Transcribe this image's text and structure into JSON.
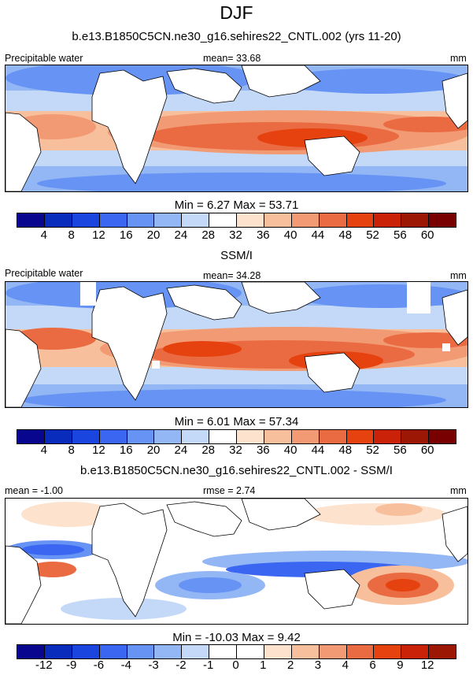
{
  "figure": {
    "title": "DJF",
    "units": "mm",
    "variable": "Precipitable water"
  },
  "colors": {
    "precip_scale": [
      "#08068f",
      "#0a2cbc",
      "#1a46df",
      "#3a66f2",
      "#6693f4",
      "#93b6f4",
      "#c4d9f7",
      "#ffffff",
      "#fde2ce",
      "#f8bf9c",
      "#f29a73",
      "#ea6b41",
      "#e5420f",
      "#c92209",
      "#9c1704",
      "#780000"
    ],
    "diff_scale": [
      "#08068f",
      "#0a2cbc",
      "#1a46df",
      "#3a66f2",
      "#6693f4",
      "#93b6f4",
      "#c4d9f7",
      "#ffffff",
      "#ffffff",
      "#fde2ce",
      "#f8bf9c",
      "#f29a73",
      "#ea6b41",
      "#e5420f",
      "#c92209",
      "#9c1704",
      "#780000"
    ]
  },
  "chart_data": [
    {
      "type": "heatmap",
      "panel": "model",
      "title": "b.e13.B1850C5CN.ne30_g16.sehires22_CNTL.002 (yrs 11-20)",
      "left_label": "Precipitable water",
      "center_label": "mean=  33.68",
      "right_label": "mm",
      "stats": "Min =   6.27 Max =  53.71",
      "mean": 33.68,
      "min": 6.27,
      "max": 53.71,
      "colorbar_levels": [
        "4",
        "8",
        "12",
        "16",
        "20",
        "24",
        "28",
        "32",
        "36",
        "40",
        "44",
        "48",
        "52",
        "56",
        "60"
      ]
    },
    {
      "type": "heatmap",
      "panel": "observations",
      "title": "SSM/I",
      "left_label": "Precipitable water",
      "center_label": "mean=  34.28",
      "right_label": "mm",
      "stats": "Min =   6.01 Max =  57.34",
      "mean": 34.28,
      "min": 6.01,
      "max": 57.34,
      "colorbar_levels": [
        "4",
        "8",
        "12",
        "16",
        "20",
        "24",
        "28",
        "32",
        "36",
        "40",
        "44",
        "48",
        "52",
        "56",
        "60"
      ]
    },
    {
      "type": "heatmap",
      "panel": "difference",
      "title": "b.e13.B1850C5CN.ne30_g16.sehires22_CNTL.002 - SSM/I",
      "left_label": "mean =  -1.00",
      "center_label": "rmse =   2.74",
      "right_label": "mm",
      "stats": "Min = -10.03 Max =    9.42",
      "mean": -1.0,
      "rmse": 2.74,
      "min": -10.03,
      "max": 9.42,
      "colorbar_levels": [
        "-12",
        "-9",
        "-6",
        "-4",
        "-3",
        "-2",
        "-1",
        "0",
        "1",
        "2",
        "3",
        "4",
        "6",
        "9",
        "12"
      ]
    }
  ]
}
